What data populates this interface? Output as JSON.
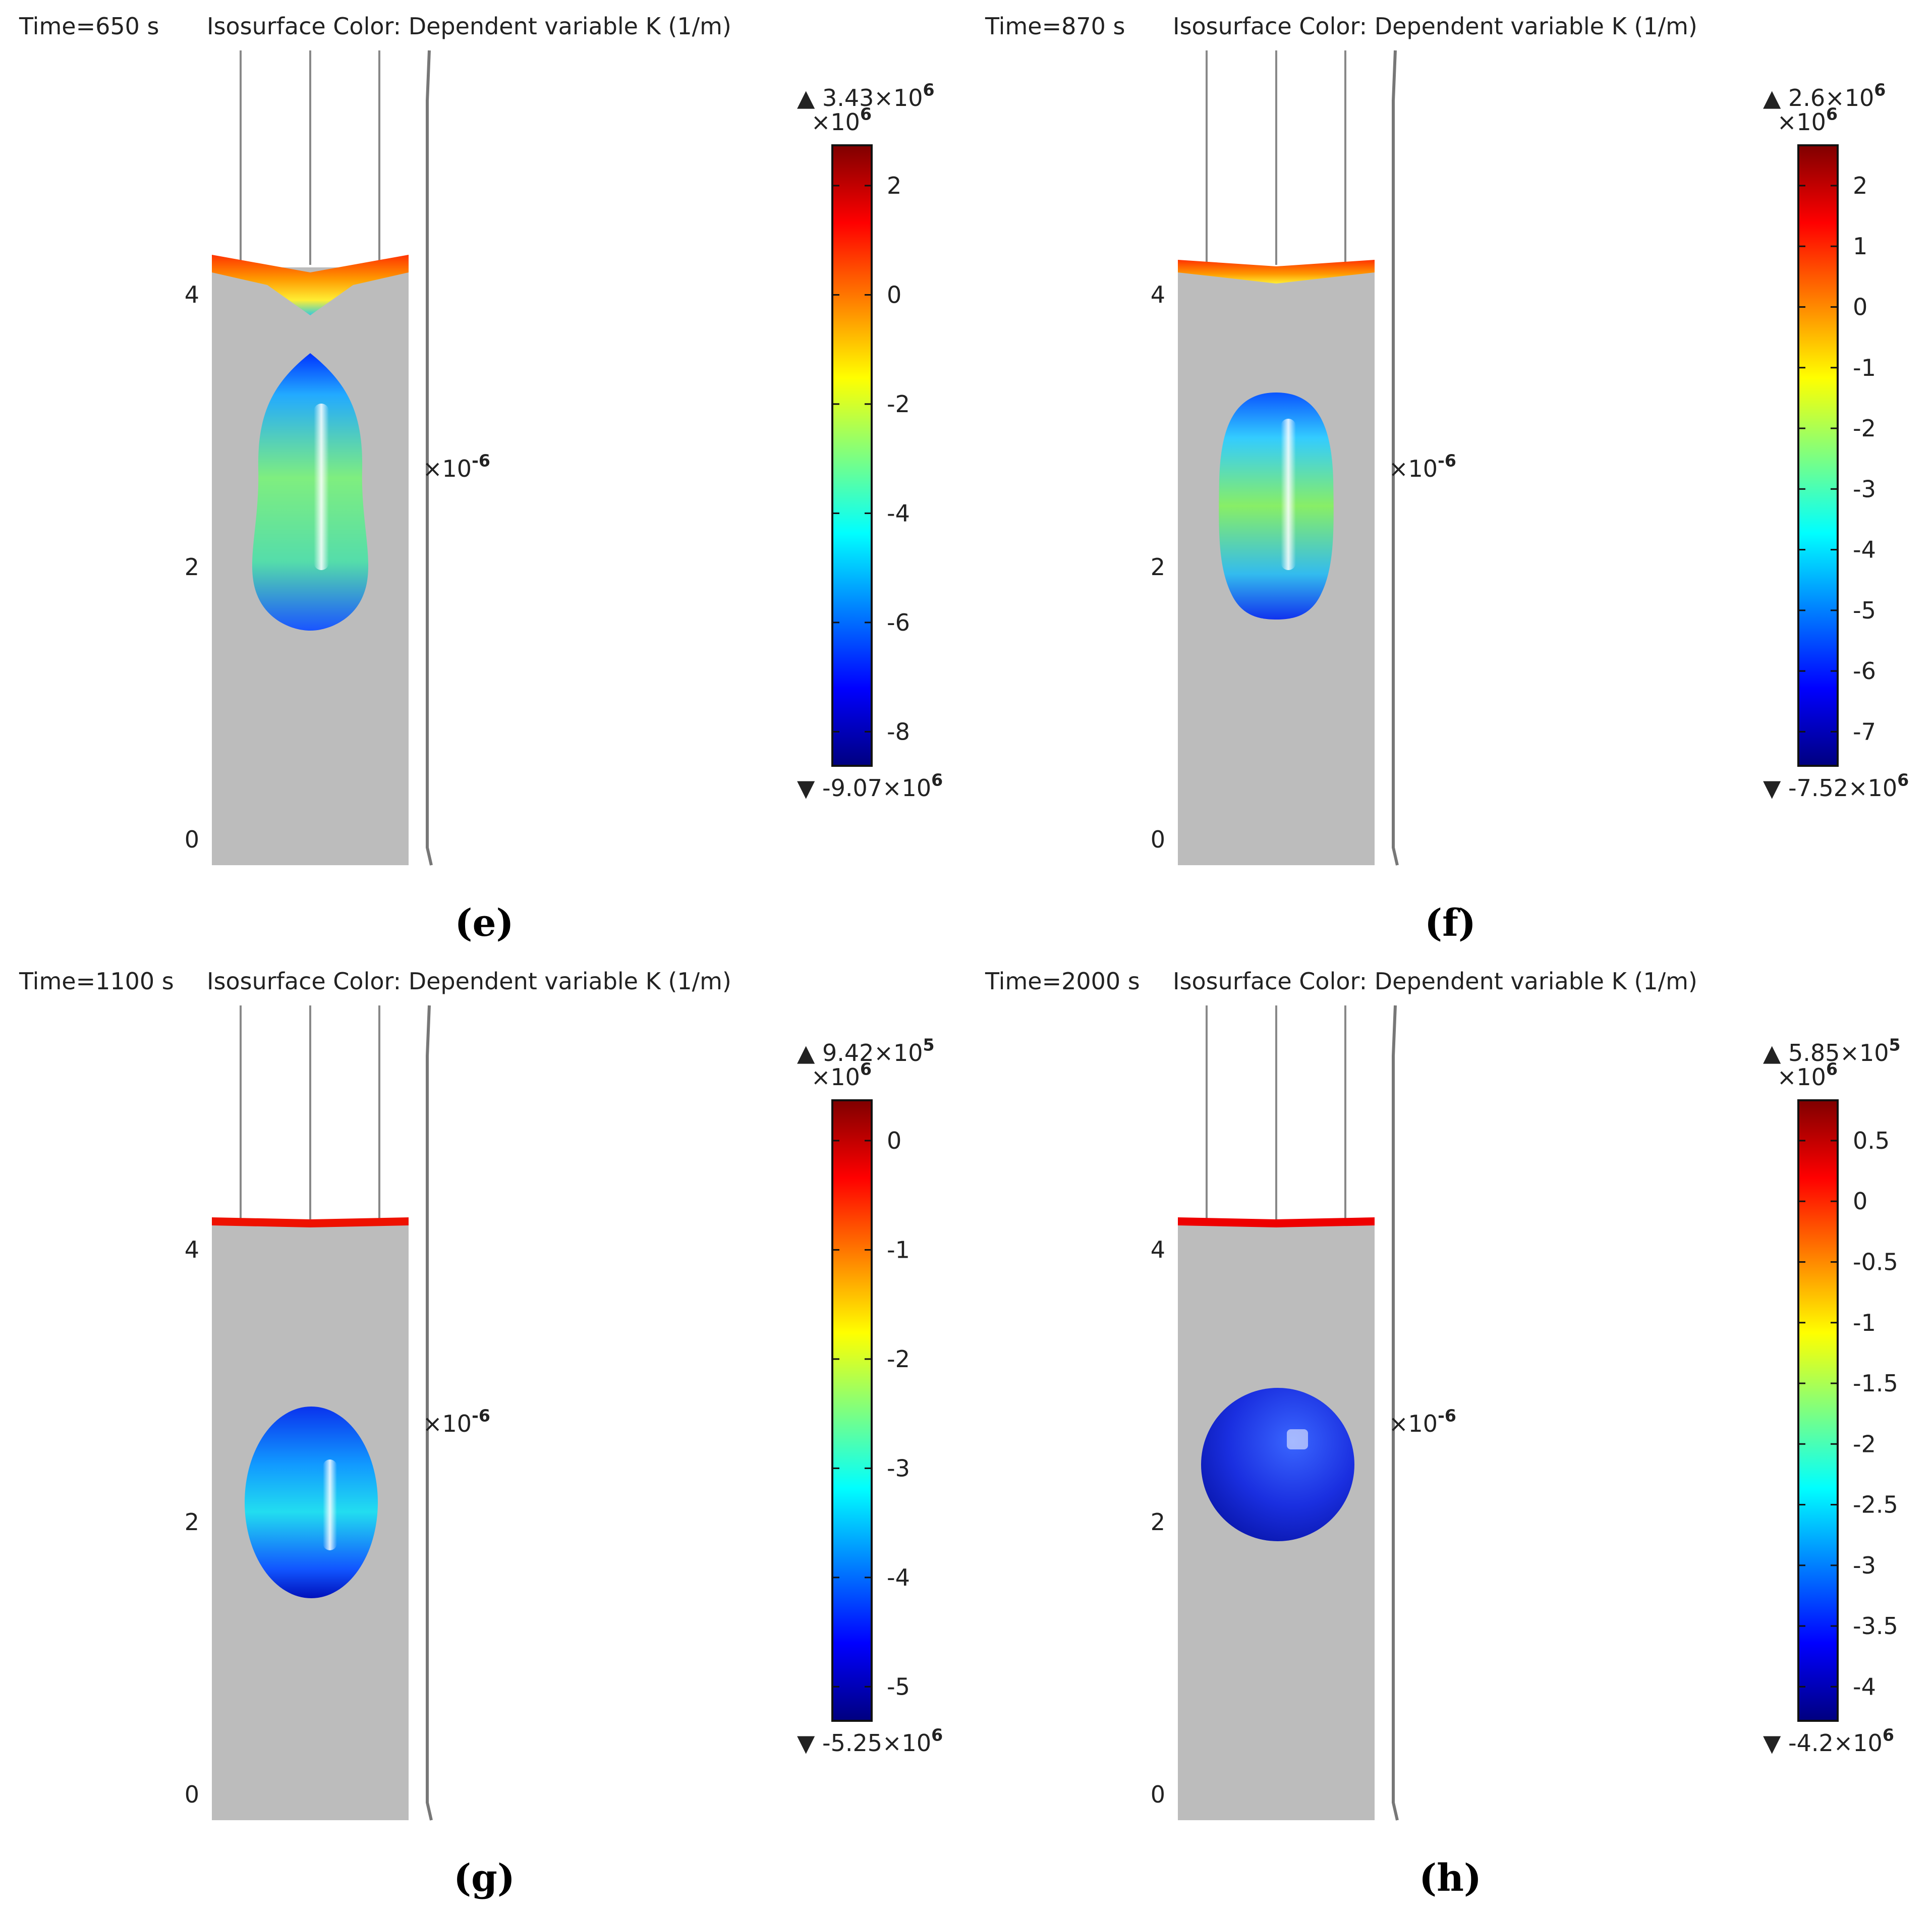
{
  "colormap": [
    "#00007f",
    "#0000ff",
    "#007fff",
    "#00ffff",
    "#7fff7f",
    "#ffff00",
    "#ff7f00",
    "#ff0000",
    "#7f0000"
  ],
  "axis_unit": "×10",
  "axis_unit_exp": "-6",
  "colorbar_unit": "×10",
  "colorbar_unit_exp": "6",
  "panels": [
    {
      "label": "(e)",
      "time": "Time=650 s",
      "title": "Isosurface Color: Dependent variable K (1/m)",
      "max_label": "▲ 3.43×10",
      "max_exp": "6",
      "min_label": "▼ -9.07×10",
      "min_exp": "6",
      "y_ticks": [
        "4",
        "2",
        "0"
      ],
      "cb_ticks": [
        "2",
        "0",
        "-2",
        "-4",
        "-6",
        "-8"
      ],
      "drop_shape": "teardrop"
    },
    {
      "label": "(f)",
      "time": "Time=870 s",
      "title": "Isosurface Color: Dependent variable K (1/m)",
      "max_label": "▲ 2.6×10",
      "max_exp": "6",
      "min_label": "▼ -7.52×10",
      "min_exp": "6",
      "y_ticks": [
        "4",
        "2",
        "0"
      ],
      "cb_ticks": [
        "2",
        "1",
        "0",
        "-1",
        "-2",
        "-3",
        "-4",
        "-5",
        "-6",
        "-7"
      ],
      "drop_shape": "capsule"
    },
    {
      "label": "(g)",
      "time": "Time=1100 s",
      "title": "Isosurface Color: Dependent variable K (1/m)",
      "max_label": "▲ 9.42×10",
      "max_exp": "5",
      "min_label": "▼ -5.25×10",
      "min_exp": "6",
      "y_ticks": [
        "4",
        "2",
        "0"
      ],
      "cb_ticks": [
        "0",
        "-1",
        "-2",
        "-3",
        "-4",
        "-5"
      ],
      "drop_shape": "oval"
    },
    {
      "label": "(h)",
      "time": "Time=2000 s",
      "title": "Isosurface Color: Dependent variable K (1/m)",
      "max_label": "▲ 5.85×10",
      "max_exp": "5",
      "min_label": "▼ -4.2×10",
      "min_exp": "6",
      "y_ticks": [
        "4",
        "2",
        "0"
      ],
      "cb_ticks": [
        "0.5",
        "0",
        "-0.5",
        "-1",
        "-1.5",
        "-2",
        "-2.5",
        "-3",
        "-3.5",
        "-4"
      ],
      "drop_shape": "sphere"
    }
  ]
}
